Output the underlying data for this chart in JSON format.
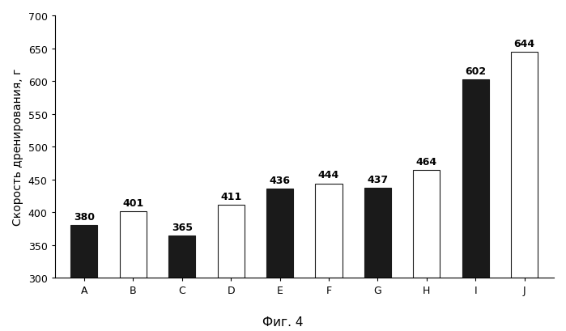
{
  "categories": [
    "A",
    "B",
    "C",
    "D",
    "E",
    "F",
    "G",
    "H",
    "I",
    "J"
  ],
  "values": [
    380,
    401,
    365,
    411,
    436,
    444,
    437,
    464,
    602,
    644
  ],
  "bar_styles": [
    "solid",
    "zigzag",
    "solid",
    "zigzag",
    "solid",
    "zigzag",
    "solid",
    "zigzag",
    "solid",
    "zigzag"
  ],
  "solid_color": "#1a1a1a",
  "hatch_facecolor": "#ffffff",
  "hatch_pattern": "wwwww",
  "ylabel": "Скорость дренирования, г",
  "xlabel_caption": "Фиг. 4",
  "ylim": [
    300,
    700
  ],
  "yticks": [
    300,
    350,
    400,
    450,
    500,
    550,
    600,
    650,
    700
  ],
  "bar_width": 0.55,
  "label_fontsize": 9,
  "tick_fontsize": 9,
  "ylabel_fontsize": 10,
  "caption_fontsize": 11,
  "background_color": "#ffffff",
  "edge_color": "#1a1a1a"
}
